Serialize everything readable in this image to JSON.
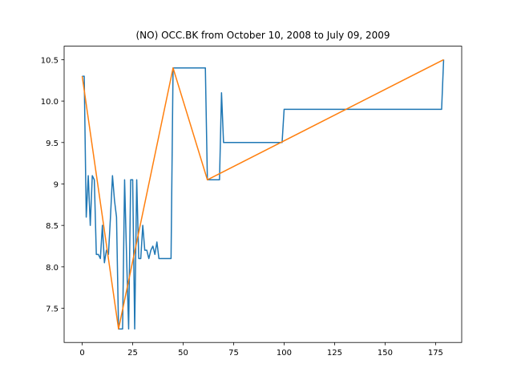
{
  "chart_data": {
    "type": "line",
    "title": "(NO) OCC.BK from October 10, 2008 to July 09, 2009",
    "series": [
      {
        "color": "#1f77b4",
        "x": [
          0,
          1,
          2,
          3,
          4,
          5,
          6,
          7,
          8,
          9,
          10,
          11,
          12,
          13,
          14,
          15,
          16,
          17,
          18,
          19,
          20,
          21,
          22,
          23,
          24,
          25,
          26,
          27,
          28,
          29,
          30,
          31,
          32,
          33,
          34,
          35,
          36,
          37,
          38,
          44,
          45,
          61,
          62,
          68,
          69,
          70,
          99,
          100,
          178,
          179
        ],
        "values": [
          10.3,
          10.3,
          8.6,
          9.1,
          8.5,
          9.1,
          9.05,
          8.15,
          8.15,
          8.1,
          8.5,
          8.05,
          8.2,
          8.15,
          8.6,
          9.1,
          8.8,
          8.6,
          7.25,
          7.25,
          7.25,
          9.05,
          8.1,
          7.25,
          9.05,
          9.05,
          7.25,
          9.05,
          8.1,
          8.1,
          8.5,
          8.2,
          8.2,
          8.1,
          8.2,
          8.25,
          8.15,
          8.3,
          8.1,
          8.1,
          10.4,
          10.4,
          9.05,
          9.05,
          10.1,
          9.5,
          9.5,
          9.9,
          9.9,
          10.5
        ]
      },
      {
        "color": "#ff7f0e",
        "x": [
          0,
          18,
          45,
          62,
          179
        ],
        "values": [
          10.3,
          7.25,
          10.4,
          9.05,
          10.5
        ]
      }
    ],
    "xlim": [
      -8.95,
      187.95
    ],
    "xticks": [
      0,
      25,
      50,
      75,
      100,
      125,
      150,
      175
    ],
    "ylim": [
      7.0875,
      10.6625
    ],
    "yticks": [
      7.5,
      {
        "value": 8,
        "label": "8.0"
      },
      8.5,
      9,
      9.5,
      {
        "value": 10,
        "label": "10.0"
      },
      10.5
    ],
    "grid": false
  }
}
